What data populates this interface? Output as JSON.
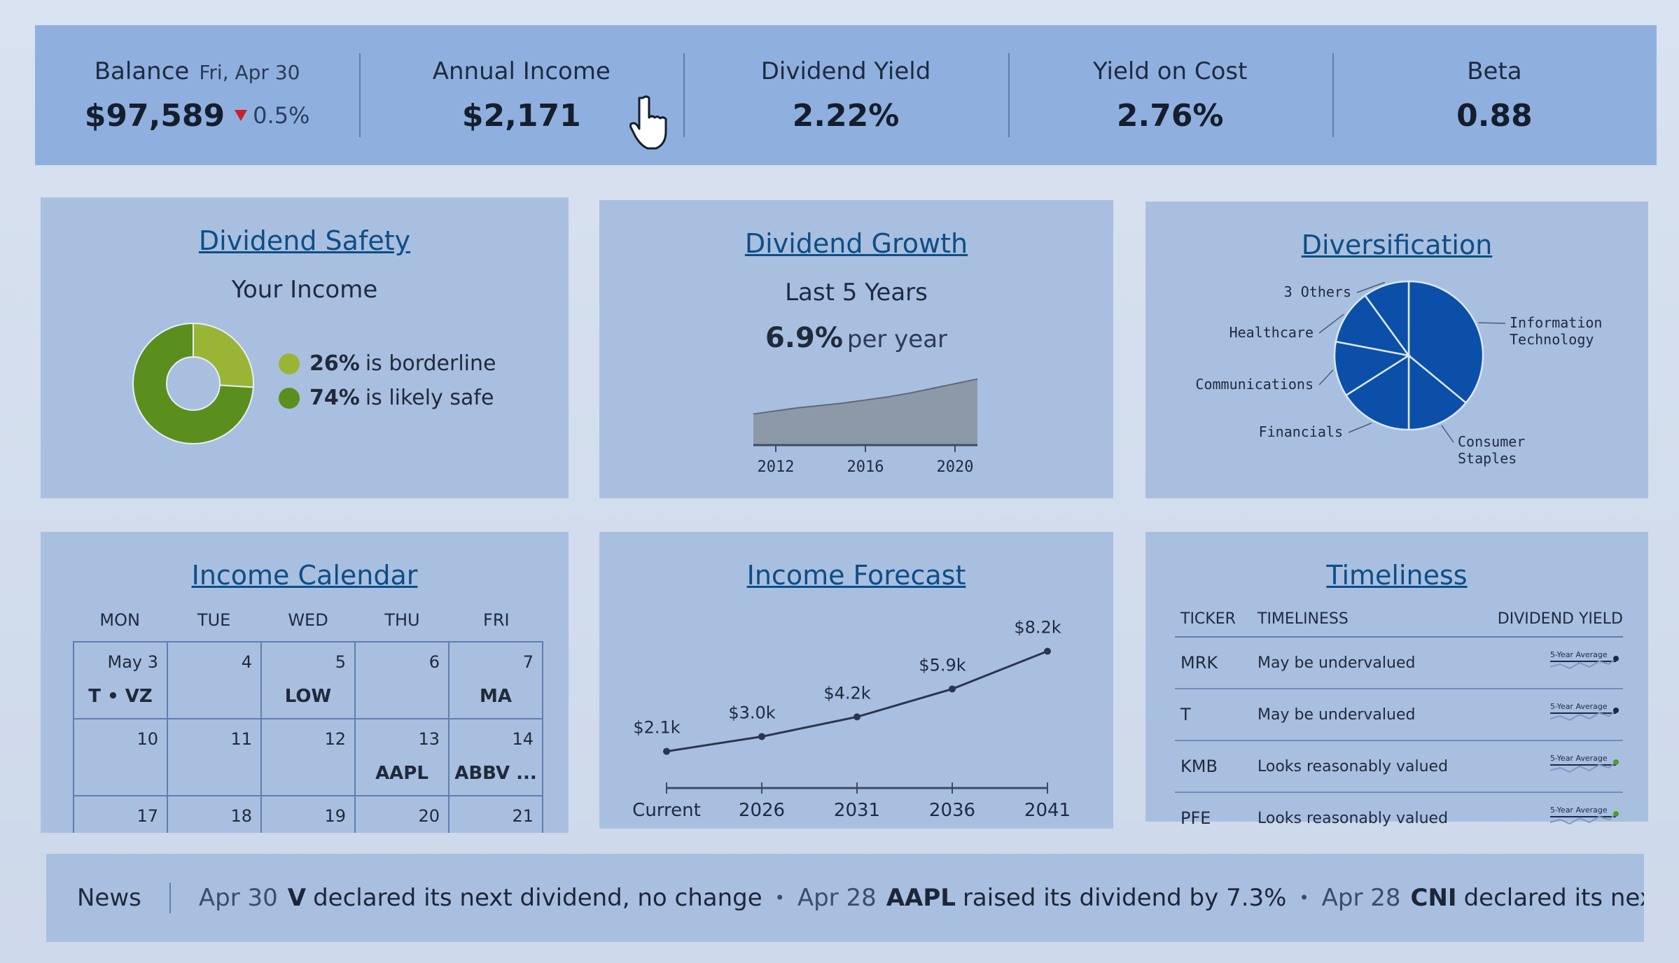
{
  "stats": {
    "balance": {
      "label": "Balance",
      "date": "Fri, Apr 30",
      "value": "$97,589",
      "change": "0.5%"
    },
    "annual_income": {
      "label": "Annual Income",
      "value": "$2,171"
    },
    "dividend_yield": {
      "label": "Dividend Yield",
      "value": "2.22%"
    },
    "yield_on_cost": {
      "label": "Yield on Cost",
      "value": "2.76%"
    },
    "beta": {
      "label": "Beta",
      "value": "0.88"
    }
  },
  "safety": {
    "title": "Dividend Safety",
    "subtitle": "Your Income",
    "legend": [
      {
        "pct": "26%",
        "text": "is borderline",
        "color": "#9ab536"
      },
      {
        "pct": "74%",
        "text": "is likely safe",
        "color": "#5a8f1e"
      }
    ]
  },
  "growth": {
    "title": "Dividend Growth",
    "subtitle": "Last 5 Years",
    "rate": "6.9%",
    "rate_suffix": "per year"
  },
  "diversification": {
    "title": "Diversification"
  },
  "calendar": {
    "title": "Income Calendar",
    "days": [
      "MON",
      "TUE",
      "WED",
      "THU",
      "FRI"
    ],
    "cells": [
      {
        "date": "May 3",
        "tickers": "T • VZ"
      },
      {
        "date": "4",
        "tickers": ""
      },
      {
        "date": "5",
        "tickers": "LOW"
      },
      {
        "date": "6",
        "tickers": ""
      },
      {
        "date": "7",
        "tickers": "MA"
      },
      {
        "date": "10",
        "tickers": ""
      },
      {
        "date": "11",
        "tickers": ""
      },
      {
        "date": "12",
        "tickers": ""
      },
      {
        "date": "13",
        "tickers": "AAPL"
      },
      {
        "date": "14",
        "tickers": "ABBV ..."
      },
      {
        "date": "17",
        "tickers": ""
      },
      {
        "date": "18",
        "tickers": ""
      },
      {
        "date": "19",
        "tickers": ""
      },
      {
        "date": "20",
        "tickers": ""
      },
      {
        "date": "21",
        "tickers": ""
      }
    ]
  },
  "forecast": {
    "title": "Income Forecast"
  },
  "timeliness": {
    "title": "Timeliness",
    "headers": [
      "TICKER",
      "TIMELINESS",
      "DIVIDEND YIELD"
    ],
    "spark_label": "5-Year Average",
    "rows": [
      {
        "ticker": "MRK",
        "status": "May be undervalued",
        "dot": "#1a2b4a"
      },
      {
        "ticker": "T",
        "status": "May be undervalued",
        "dot": "#1a2b4a"
      },
      {
        "ticker": "KMB",
        "status": "Looks reasonably valued",
        "dot": "#4e9a2a"
      },
      {
        "ticker": "PFE",
        "status": "Looks reasonably valued",
        "dot": "#4e9a2a"
      }
    ]
  },
  "news": {
    "label": "News",
    "items": [
      {
        "date": "Apr 30",
        "ticker": "V",
        "text": "declared its next dividend, no change"
      },
      {
        "date": "Apr 28",
        "ticker": "AAPL",
        "text": "raised its dividend by 7.3%"
      },
      {
        "date": "Apr 28",
        "ticker": "CNI",
        "text": "declared its next dividen..."
      }
    ]
  },
  "chart_data": [
    {
      "type": "pie",
      "title": "Your Income",
      "labels": [
        "borderline",
        "likely safe"
      ],
      "values": [
        26,
        74
      ],
      "colors": [
        "#9ab536",
        "#5a8f1e"
      ]
    },
    {
      "type": "area",
      "x": [
        "2012",
        "2016",
        "2020"
      ],
      "x_values": [
        2011,
        2012,
        2013,
        2014,
        2015,
        2016,
        2017,
        2018,
        2019,
        2020,
        2021
      ],
      "values": [
        1.0,
        1.04,
        1.08,
        1.11,
        1.14,
        1.18,
        1.22,
        1.27,
        1.33,
        1.39,
        1.45
      ],
      "color": "#8d99a8"
    },
    {
      "type": "pie",
      "labels": [
        "Information Technology",
        "Consumer Staples",
        "Financials",
        "Communications",
        "Healthcare",
        "3 Others"
      ],
      "values": [
        36,
        14,
        16,
        12,
        12,
        10
      ],
      "color": "#0b4fa8"
    },
    {
      "type": "line",
      "categories": [
        "Current",
        "2026",
        "2031",
        "2036",
        "2041"
      ],
      "values": [
        2.1,
        3.0,
        4.2,
        5.9,
        8.2
      ],
      "labels": [
        "$2.1k",
        "$3.0k",
        "$4.2k",
        "$5.9k",
        "$8.2k"
      ]
    }
  ]
}
